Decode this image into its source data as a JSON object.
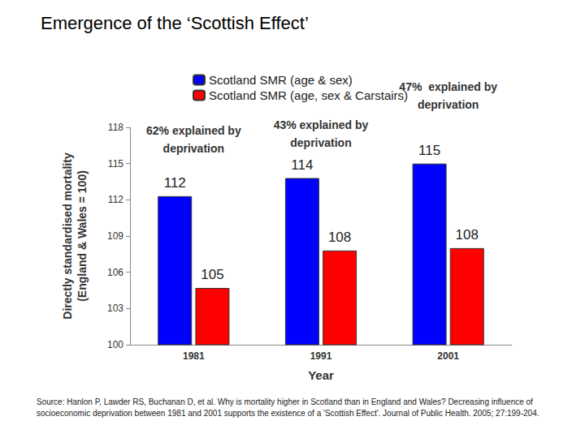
{
  "chart_data": {
    "type": "bar",
    "title": "Emergence of the ‘Scottish Effect’",
    "x_label": "Year",
    "y_label": "Directly standardised mortality\n(England & Wales = 100)",
    "categories": [
      "1981",
      "1991",
      "2001"
    ],
    "series": [
      {
        "name": "Scotland SMR (age & sex)",
        "color": "#0000ff",
        "values": [
          112.3,
          113.8,
          115.0
        ],
        "value_labels": [
          "112",
          "114",
          "115"
        ]
      },
      {
        "name": "Scotland SMR (age, sex & Carstairs)",
        "color": "#ff0000",
        "values": [
          104.7,
          107.8,
          108.0
        ],
        "value_labels": [
          "105",
          "108",
          "108"
        ]
      }
    ],
    "ylim": [
      100,
      118
    ],
    "yticks": [
      100,
      103,
      106,
      109,
      112,
      115,
      118
    ],
    "grid": false,
    "legend": "top",
    "data_labels": true,
    "annotations": [
      {
        "category": "1981",
        "text": "62% explained by\ndeprivation"
      },
      {
        "category": "1991",
        "text": "43% explained by\ndeprivation"
      },
      {
        "category": "2001",
        "text": "47%  explained by\ndeprivation"
      }
    ],
    "source": "Source: Hanlon P, Lawder RS, Buchanan D, et al. Why is mortality higher in Scotland than in England and Wales? Decreasing influence of socioeconomic deprivation between 1981 and 2001 supports the existence of a 'Scottish Effect'. Journal of Public Health. 2005; 27:199-204."
  }
}
